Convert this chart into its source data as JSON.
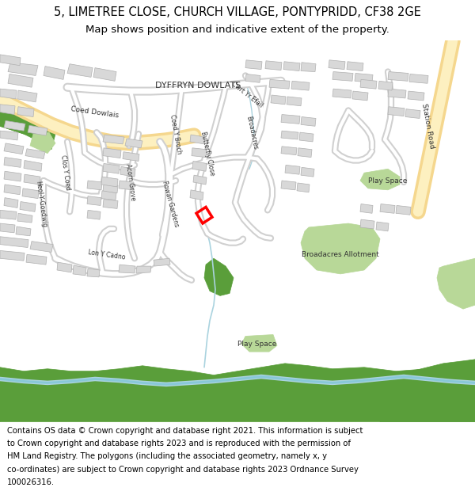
{
  "title_line1": "5, LIMETREE CLOSE, CHURCH VILLAGE, PONTYPRIDD, CF38 2GE",
  "title_line2": "Map shows position and indicative extent of the property.",
  "footer_lines": [
    "Contains OS data © Crown copyright and database right 2021. This information is subject",
    "to Crown copyright and database rights 2023 and is reproduced with the permission of",
    "HM Land Registry. The polygons (including the associated geometry, namely x, y",
    "co-ordinates) are subject to Crown copyright and database rights 2023 Ordnance Survey",
    "100026316."
  ],
  "title_fontsize": 10.5,
  "title2_fontsize": 9.5,
  "footer_fontsize": 7.2,
  "fig_width": 6.0,
  "fig_height": 6.25,
  "map_bg_color": "#ffffff",
  "title_area_color": "#ffffff",
  "footer_area_color": "#ffffff",
  "road_major_color": "#f5d78e",
  "road_major_inner": "#fdf0c0",
  "road_minor_color": "#d0d0d0",
  "road_minor_inner": "#ffffff",
  "building_color": "#d8d8d8",
  "building_edge_color": "#b0b0b0",
  "green_dark_color": "#5a9e3a",
  "green_light_color": "#b8d898",
  "water_color": "#aad3df",
  "stream_color": "#aad3df",
  "highlight_color": "#ff0000",
  "street_text_color": "#333333",
  "dpi": 100
}
